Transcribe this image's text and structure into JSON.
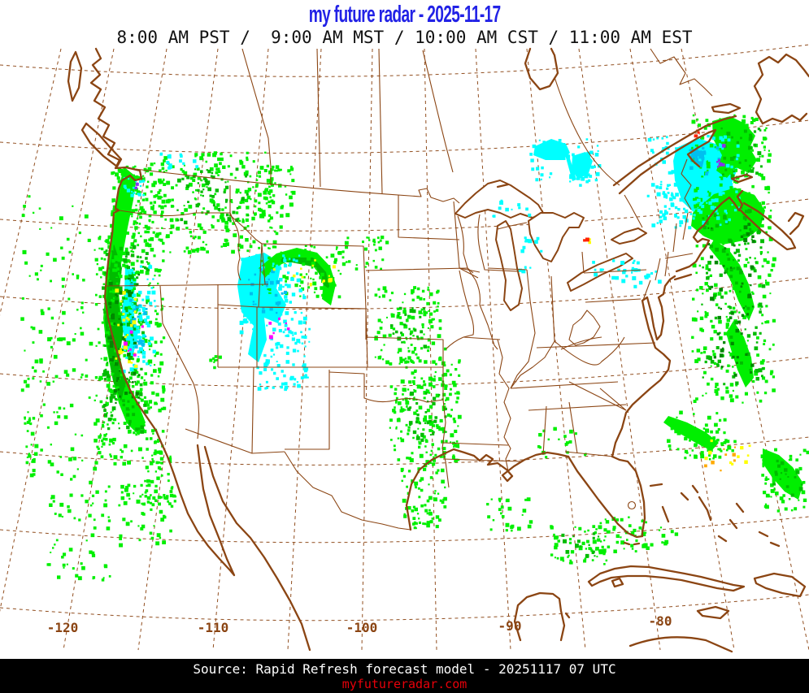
{
  "header": {
    "title": "my future radar - 2025-11-17",
    "subtitle": "8:00 AM PST /  9:00 AM MST / 10:00 AM CST / 11:00 AM EST"
  },
  "map": {
    "longitude_labels": [
      "-120",
      "-110",
      "-100",
      "-90",
      "-80"
    ]
  },
  "footer": {
    "source_line": "Source: Rapid Refresh forecast model - 20251117 07 UTC",
    "website": "myfutureradar.com"
  },
  "colors": {
    "title_blue": "#2222e6",
    "map_brown": "#8b4513",
    "footer_bg": "#000000",
    "footer_text": "#ffffff",
    "website_red": "#e8000a",
    "radar_light_green": "#00ef00",
    "radar_green": "#00bb00",
    "radar_dark_green": "#008800",
    "radar_cyan": "#00ffff",
    "radar_deep_cyan": "#00bfef",
    "radar_yellow": "#ffff00",
    "radar_magenta": "#ff00ff",
    "radar_purple": "#8833ee",
    "radar_red": "#ff2200",
    "radar_orange": "#ffaa00"
  }
}
